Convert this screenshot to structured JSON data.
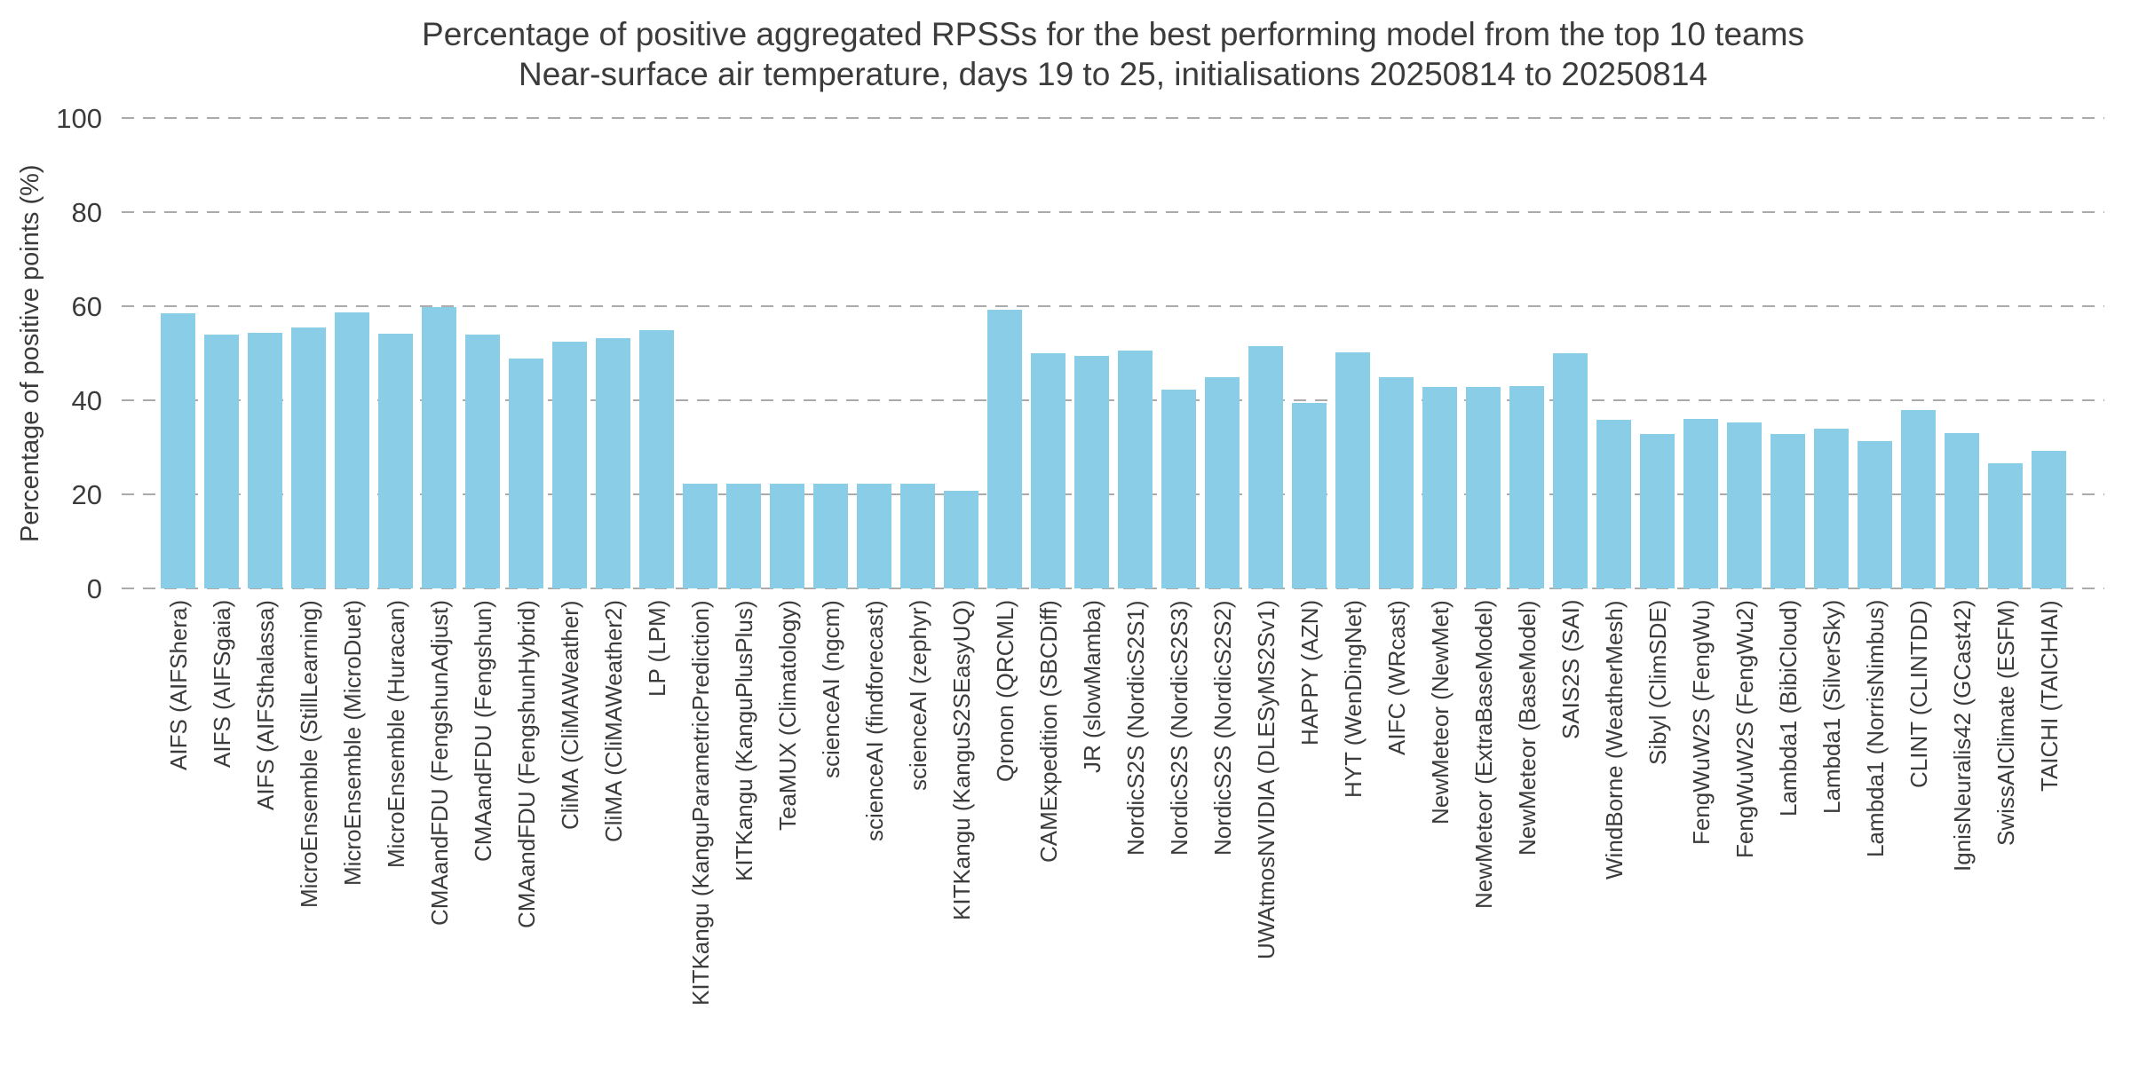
{
  "chart": {
    "title": "Percentage of positive aggregated RPSSs for the best performing model from the top 10 teams",
    "subtitle": "Near-surface air temperature, days 19 to 25, initialisations 20250814 to 20250814",
    "ylabel": "Percentage of positive points (%)"
  },
  "chart_data": {
    "type": "bar",
    "title": "Percentage of positive aggregated RPSSs for the best performing model from the top 10 teams",
    "subtitle": "Near-surface air temperature, days 19 to 25, initialisations 20250814 to 20250814",
    "xlabel": "",
    "ylabel": "Percentage of positive points (%)",
    "ylim": [
      0,
      100
    ],
    "yticks": [
      0,
      20,
      40,
      60,
      80,
      100
    ],
    "grid": "horizontal-dashed",
    "legend": "none",
    "bar_color": "#89cde7",
    "text_color": "#3b3b3b",
    "grid_color": "#ababab",
    "categories": [
      "AIFS (AIFShera)",
      "AIFS (AIFSgaia)",
      "AIFS (AIFSthalassa)",
      "MicroEnsemble (StillLearning)",
      "MicroEnsemble (MicroDuet)",
      "MicroEnsemble (Huracan)",
      "CMAandFDU (FengshunAdjust)",
      "CMAandFDU (Fengshun)",
      "CMAandFDU (FengshunHybrid)",
      "CliMA (CliMAWeather)",
      "CliMA (CliMAWeather2)",
      "LP (LPM)",
      "KITKangu (KanguParametricPrediction)",
      "KITKangu (KanguPlusPlus)",
      "TeaMUX (Climatology)",
      "scienceAI (ngcm)",
      "scienceAI (findforecast)",
      "scienceAI (zephyr)",
      "KITKangu (KanguS2SEasyUQ)",
      "Qronon (QRCML)",
      "CAMExpedition (SBCDiff)",
      "JR (slowMamba)",
      "NordicS2S (NordicS2S1)",
      "NordicS2S (NordicS2S3)",
      "NordicS2S (NordicS2S2)",
      "UWAtmosNVIDIA (DLESyMS2Sv1)",
      "HAPPY (AZN)",
      "HYT (WenDingNet)",
      "AIFC (WRcast)",
      "NewMeteor (NewMet)",
      "NewMeteor (ExtraBaseModel)",
      "NewMeteor (BaseModel)",
      "SAIS2S (SAI)",
      "WindBorne (WeatherMesh)",
      "Sibyl (ClimSDE)",
      "FengWuW2S (FengWu)",
      "FengWuW2S (FengWu2)",
      "Lambda1 (BibiCloud)",
      "Lambda1 (SilverSky)",
      "Lambda1 (NorrisNimbus)",
      "CLINT (CLINTDD)",
      "IgnisNeuralis42 (GCast42)",
      "SwissAIClimate (ESFM)",
      "TAICHI (TAICHIAI)"
    ],
    "values": [
      58.4,
      54.0,
      54.3,
      55.5,
      58.6,
      54.2,
      59.8,
      54.0,
      48.8,
      52.5,
      53.2,
      55.0,
      22.2,
      22.2,
      22.2,
      22.2,
      22.2,
      22.2,
      20.8,
      59.2,
      50.0,
      49.5,
      50.5,
      42.2,
      45.0,
      51.6,
      39.5,
      50.2,
      44.9,
      42.8,
      42.8,
      43.0,
      50.0,
      35.9,
      32.8,
      36.0,
      35.3,
      32.8,
      34.0,
      31.4,
      38.0,
      33.0,
      26.6,
      29.2
    ]
  }
}
